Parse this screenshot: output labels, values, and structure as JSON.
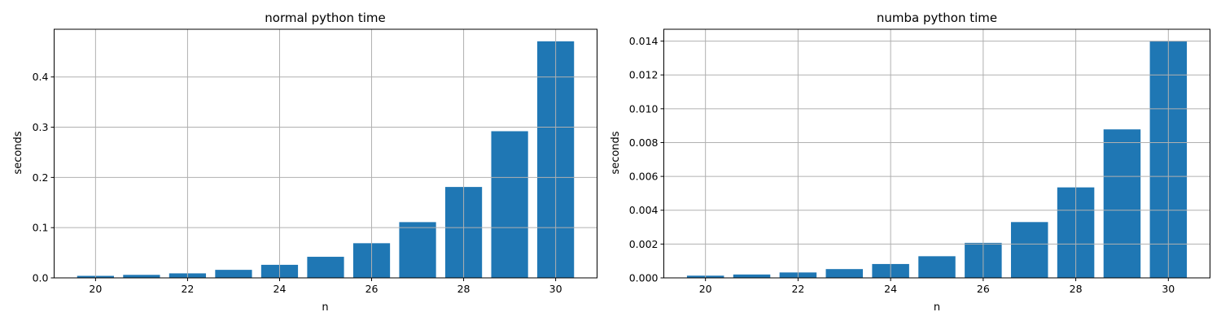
{
  "colors": {
    "bar": "#1f77b4",
    "grid": "#b0b0b0",
    "text": "#000000"
  },
  "chart_data": [
    {
      "type": "bar",
      "title": "normal python time",
      "xlabel": "n",
      "ylabel": "seconds",
      "x": [
        20,
        21,
        22,
        23,
        24,
        25,
        26,
        27,
        28,
        29,
        30
      ],
      "values": [
        0.004,
        0.006,
        0.009,
        0.016,
        0.026,
        0.042,
        0.069,
        0.111,
        0.181,
        0.292,
        0.471
      ],
      "xlim": [
        19.1,
        30.9
      ],
      "ylim": [
        0,
        0.495
      ],
      "xticks": [
        20,
        22,
        24,
        26,
        28,
        30
      ],
      "xtick_labels": [
        "20",
        "22",
        "24",
        "26",
        "28",
        "30"
      ],
      "yticks": [
        0,
        0.1,
        0.2,
        0.3,
        0.4
      ],
      "ytick_labels": [
        "0.0",
        "0.1",
        "0.2",
        "0.3",
        "0.4"
      ],
      "bar_color": "#1f77b4",
      "grid": true
    },
    {
      "type": "bar",
      "title": "numba python time",
      "xlabel": "n",
      "ylabel": "seconds",
      "x": [
        20,
        21,
        22,
        23,
        24,
        25,
        26,
        27,
        28,
        29,
        30
      ],
      "values": [
        0.00013,
        0.0002,
        0.00032,
        0.00052,
        0.00082,
        0.00128,
        0.00207,
        0.0033,
        0.00535,
        0.00878,
        0.014
      ],
      "xlim": [
        19.1,
        30.9
      ],
      "ylim": [
        0,
        0.0147
      ],
      "xticks": [
        20,
        22,
        24,
        26,
        28,
        30
      ],
      "xtick_labels": [
        "20",
        "22",
        "24",
        "26",
        "28",
        "30"
      ],
      "yticks": [
        0,
        0.002,
        0.004,
        0.006,
        0.008,
        0.01,
        0.012,
        0.014
      ],
      "ytick_labels": [
        "0.000",
        "0.002",
        "0.004",
        "0.006",
        "0.008",
        "0.010",
        "0.012",
        "0.014"
      ],
      "bar_color": "#1f77b4",
      "grid": true
    }
  ]
}
